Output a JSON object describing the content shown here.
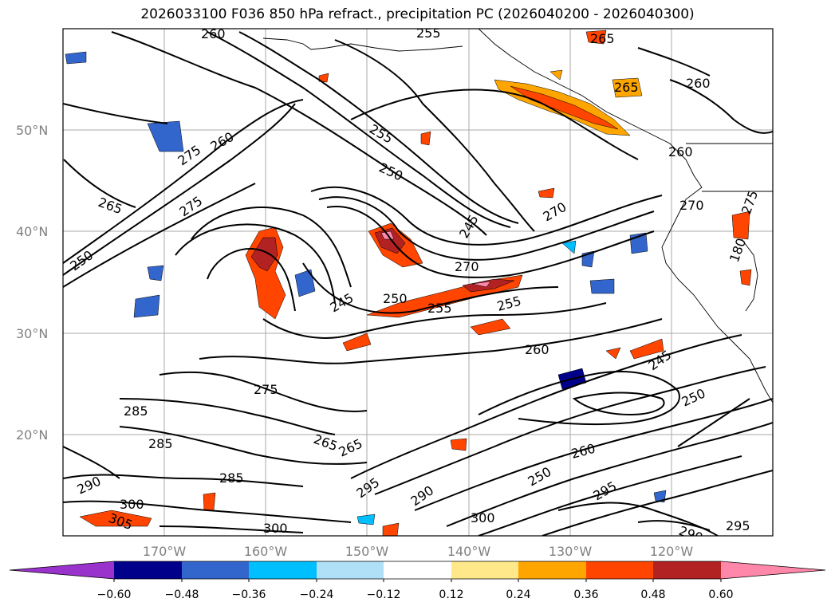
{
  "title": "2026033100 F036 850 hPa refract., precipitation PC (2026040200 - 2026040300)",
  "map": {
    "lat_labels": [
      "50°N",
      "40°N",
      "30°N",
      "20°N"
    ],
    "lon_labels": [
      "170°W",
      "160°W",
      "150°W",
      "140°W",
      "130°W",
      "120°W"
    ],
    "contour_labels": [
      "260",
      "255",
      "265",
      "260",
      "265",
      "260",
      "275",
      "255",
      "250",
      "260",
      "265",
      "275",
      "250",
      "270",
      "245",
      "270",
      "270",
      "250",
      "255",
      "255",
      "245",
      "260",
      "250",
      "275",
      "265",
      "285",
      "265",
      "285",
      "290",
      "300",
      "305",
      "285",
      "295",
      "290",
      "300",
      "295",
      "290",
      "295",
      "260",
      "250",
      "245",
      "180",
      "275",
      "300"
    ]
  },
  "colorbar": {
    "tick_labels": [
      "−0.60",
      "−0.48",
      "−0.36",
      "−0.24",
      "−0.12",
      "0.12",
      "0.24",
      "0.36",
      "0.48",
      "0.60"
    ],
    "colors": [
      "#9933cc",
      "#00008b",
      "#3366cc",
      "#00bfff",
      "#b0e0f8",
      "#ffffff",
      "#ffe88a",
      "#ffa500",
      "#ff4500",
      "#b22222",
      "#ff88aa"
    ]
  }
}
